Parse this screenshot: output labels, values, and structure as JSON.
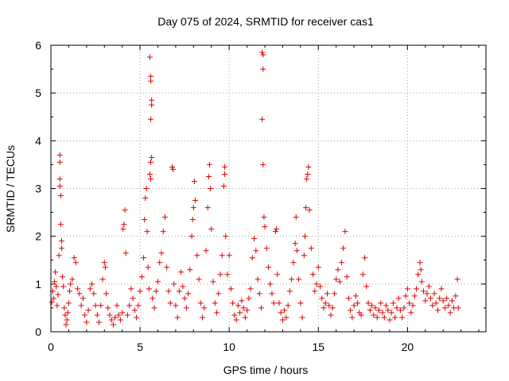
{
  "chart_data": {
    "type": "scatter",
    "title": "Day 075 of 2024, SRMTID for receiver cas1",
    "xlabel": "GPS time / hours",
    "ylabel": "SRMTID / TECUs",
    "xlim": [
      0,
      24.4
    ],
    "ylim": [
      0,
      6
    ],
    "xticks": [
      0,
      5,
      10,
      15,
      20
    ],
    "yticks": [
      0,
      1,
      2,
      3,
      4,
      5,
      6
    ],
    "xtick_labels": [
      "0",
      "5",
      "10",
      "15",
      "20"
    ],
    "ytick_labels": [
      "0",
      "1",
      "2",
      "3",
      "4",
      "5",
      "6"
    ],
    "grid": true,
    "marker": "+",
    "series": [
      {
        "name": "SRMTID",
        "color": "#e00000",
        "points": [
          [
            0.05,
            0.62
          ],
          [
            0.1,
            0.85
          ],
          [
            0.15,
            0.7
          ],
          [
            0.2,
            1.05
          ],
          [
            0.25,
            1.25
          ],
          [
            0.3,
            0.95
          ],
          [
            0.35,
            0.55
          ],
          [
            0.4,
            0.78
          ],
          [
            0.45,
            1.6
          ],
          [
            0.5,
            3.05
          ],
          [
            0.5,
            3.2
          ],
          [
            0.5,
            3.55
          ],
          [
            0.5,
            3.7
          ],
          [
            0.55,
            2.85
          ],
          [
            0.55,
            2.25
          ],
          [
            0.6,
            1.75
          ],
          [
            0.6,
            1.9
          ],
          [
            0.65,
            1.15
          ],
          [
            0.7,
            0.95
          ],
          [
            0.75,
            0.5
          ],
          [
            0.8,
            0.35
          ],
          [
            0.85,
            0.15
          ],
          [
            0.9,
            0.25
          ],
          [
            0.95,
            0.4
          ],
          [
            1.0,
            0.6
          ],
          [
            1.05,
            0.85
          ],
          [
            1.1,
            1.0
          ],
          [
            1.2,
            1.1
          ],
          [
            1.3,
            1.55
          ],
          [
            1.4,
            1.45
          ],
          [
            1.5,
            0.9
          ],
          [
            1.6,
            0.8
          ],
          [
            1.7,
            0.55
          ],
          [
            1.8,
            0.7
          ],
          [
            1.9,
            0.35
          ],
          [
            2.0,
            0.2
          ],
          [
            2.1,
            0.45
          ],
          [
            2.2,
            0.9
          ],
          [
            2.3,
            1.0
          ],
          [
            2.4,
            0.8
          ],
          [
            2.5,
            0.55
          ],
          [
            2.6,
            0.35
          ],
          [
            2.7,
            0.2
          ],
          [
            2.8,
            0.55
          ],
          [
            2.9,
            1.1
          ],
          [
            3.0,
            1.45
          ],
          [
            3.05,
            1.35
          ],
          [
            3.1,
            0.8
          ],
          [
            3.2,
            0.5
          ],
          [
            3.3,
            0.35
          ],
          [
            3.4,
            0.25
          ],
          [
            3.5,
            0.15
          ],
          [
            3.6,
            0.3
          ],
          [
            3.7,
            0.55
          ],
          [
            3.8,
            0.35
          ],
          [
            3.9,
            0.25
          ],
          [
            4.0,
            0.4
          ],
          [
            4.05,
            2.15
          ],
          [
            4.1,
            2.25
          ],
          [
            4.15,
            2.55
          ],
          [
            4.2,
            1.65
          ],
          [
            4.3,
            0.35
          ],
          [
            4.4,
            0.55
          ],
          [
            4.5,
            0.9
          ],
          [
            4.6,
            0.7
          ],
          [
            4.7,
            0.45
          ],
          [
            4.8,
            0.3
          ],
          [
            4.9,
            0.55
          ],
          [
            5.0,
            0.85
          ],
          [
            5.1,
            1.15
          ],
          [
            5.2,
            1.55
          ],
          [
            5.25,
            2.35
          ],
          [
            5.3,
            2.8
          ],
          [
            5.35,
            3.0
          ],
          [
            5.4,
            2.1
          ],
          [
            5.45,
            1.35
          ],
          [
            5.5,
            0.9
          ],
          [
            5.55,
            5.75
          ],
          [
            5.6,
            5.35
          ],
          [
            5.6,
            5.25
          ],
          [
            5.65,
            4.85
          ],
          [
            5.65,
            4.75
          ],
          [
            5.6,
            4.45
          ],
          [
            5.6,
            3.55
          ],
          [
            5.55,
            3.3
          ],
          [
            5.6,
            3.2
          ],
          [
            5.65,
            3.65
          ],
          [
            5.7,
            0.7
          ],
          [
            5.8,
            0.5
          ],
          [
            5.9,
            0.85
          ],
          [
            6.0,
            1.05
          ],
          [
            6.1,
            1.45
          ],
          [
            6.2,
            1.65
          ],
          [
            6.3,
            2.1
          ],
          [
            6.4,
            2.4
          ],
          [
            6.5,
            1.35
          ],
          [
            6.6,
            0.85
          ],
          [
            6.7,
            0.6
          ],
          [
            6.8,
            3.45
          ],
          [
            6.85,
            3.4
          ],
          [
            6.9,
            1.0
          ],
          [
            7.0,
            0.55
          ],
          [
            7.1,
            0.3
          ],
          [
            7.2,
            0.85
          ],
          [
            7.3,
            1.25
          ],
          [
            7.4,
            0.95
          ],
          [
            7.5,
            0.7
          ],
          [
            7.6,
            0.5
          ],
          [
            7.7,
            0.8
          ],
          [
            7.8,
            1.3
          ],
          [
            7.9,
            2.0
          ],
          [
            7.95,
            2.35
          ],
          [
            8.0,
            2.6
          ],
          [
            8.05,
            3.15
          ],
          [
            8.1,
            2.75
          ],
          [
            8.2,
            1.6
          ],
          [
            8.3,
            1.1
          ],
          [
            8.4,
            0.6
          ],
          [
            8.5,
            0.3
          ],
          [
            8.6,
            0.5
          ],
          [
            8.7,
            1.7
          ],
          [
            8.8,
            2.6
          ],
          [
            8.85,
            3.25
          ],
          [
            8.9,
            3.5
          ],
          [
            8.95,
            3.0
          ],
          [
            9.0,
            2.15
          ],
          [
            9.1,
            1.05
          ],
          [
            9.2,
            0.6
          ],
          [
            9.3,
            0.4
          ],
          [
            9.4,
            0.8
          ],
          [
            9.5,
            1.2
          ],
          [
            9.6,
            1.6
          ],
          [
            9.7,
            3.05
          ],
          [
            9.75,
            3.3
          ],
          [
            9.75,
            3.45
          ],
          [
            9.8,
            2.0
          ],
          [
            9.9,
            1.2
          ],
          [
            10.0,
            1.6
          ],
          [
            10.1,
            0.9
          ],
          [
            10.2,
            0.6
          ],
          [
            10.3,
            0.35
          ],
          [
            10.4,
            0.25
          ],
          [
            10.5,
            0.55
          ],
          [
            10.6,
            0.4
          ],
          [
            10.7,
            0.65
          ],
          [
            10.8,
            0.5
          ],
          [
            10.9,
            0.3
          ],
          [
            11.0,
            0.45
          ],
          [
            11.1,
            0.7
          ],
          [
            11.2,
            0.9
          ],
          [
            11.3,
            1.55
          ],
          [
            11.4,
            1.95
          ],
          [
            11.5,
            1.7
          ],
          [
            11.6,
            1.1
          ],
          [
            11.7,
            0.8
          ],
          [
            11.8,
            0.5
          ],
          [
            11.85,
            5.85
          ],
          [
            11.9,
            5.8
          ],
          [
            11.9,
            5.5
          ],
          [
            11.85,
            4.45
          ],
          [
            11.9,
            3.5
          ],
          [
            11.95,
            2.4
          ],
          [
            12.0,
            2.2
          ],
          [
            12.1,
            1.75
          ],
          [
            12.2,
            1.35
          ],
          [
            12.3,
            1.0
          ],
          [
            12.4,
            0.8
          ],
          [
            12.5,
            0.6
          ],
          [
            12.6,
            2.1
          ],
          [
            12.65,
            2.15
          ],
          [
            12.7,
            1.2
          ],
          [
            12.8,
            0.6
          ],
          [
            12.9,
            0.4
          ],
          [
            13.0,
            0.25
          ],
          [
            13.1,
            0.45
          ],
          [
            13.2,
            0.3
          ],
          [
            13.3,
            0.55
          ],
          [
            13.4,
            0.85
          ],
          [
            13.5,
            1.1
          ],
          [
            13.6,
            1.45
          ],
          [
            13.7,
            1.85
          ],
          [
            13.75,
            2.4
          ],
          [
            13.8,
            1.7
          ],
          [
            13.9,
            1.1
          ],
          [
            14.0,
            0.6
          ],
          [
            14.1,
            0.3
          ],
          [
            14.2,
            1.6
          ],
          [
            14.25,
            2.0
          ],
          [
            14.3,
            2.6
          ],
          [
            14.35,
            3.2
          ],
          [
            14.4,
            3.3
          ],
          [
            14.45,
            3.45
          ],
          [
            14.5,
            2.55
          ],
          [
            14.6,
            1.75
          ],
          [
            14.7,
            1.2
          ],
          [
            14.8,
            0.85
          ],
          [
            14.9,
            1.0
          ],
          [
            15.0,
            1.35
          ],
          [
            15.1,
            0.95
          ],
          [
            15.2,
            0.7
          ],
          [
            15.3,
            0.5
          ],
          [
            15.4,
            0.6
          ],
          [
            15.5,
            0.8
          ],
          [
            15.6,
            0.55
          ],
          [
            15.7,
            0.35
          ],
          [
            15.8,
            0.5
          ],
          [
            15.9,
            0.8
          ],
          [
            16.0,
            1.1
          ],
          [
            16.1,
            1.3
          ],
          [
            16.2,
            1.05
          ],
          [
            16.3,
            1.45
          ],
          [
            16.4,
            1.75
          ],
          [
            16.5,
            2.1
          ],
          [
            16.6,
            1.15
          ],
          [
            16.7,
            0.7
          ],
          [
            16.8,
            0.45
          ],
          [
            16.9,
            0.3
          ],
          [
            17.0,
            0.55
          ],
          [
            17.1,
            0.75
          ],
          [
            17.2,
            0.6
          ],
          [
            17.3,
            0.4
          ],
          [
            17.4,
            0.35
          ],
          [
            17.5,
            1.2
          ],
          [
            17.6,
            1.55
          ],
          [
            17.7,
            0.95
          ],
          [
            17.8,
            0.6
          ],
          [
            17.9,
            0.45
          ],
          [
            18.0,
            0.55
          ],
          [
            18.1,
            0.35
          ],
          [
            18.2,
            0.5
          ],
          [
            18.3,
            0.3
          ],
          [
            18.4,
            0.45
          ],
          [
            18.5,
            0.6
          ],
          [
            18.6,
            0.4
          ],
          [
            18.7,
            0.3
          ],
          [
            18.8,
            0.55
          ],
          [
            18.9,
            0.45
          ],
          [
            19.0,
            0.25
          ],
          [
            19.1,
            0.4
          ],
          [
            19.2,
            0.6
          ],
          [
            19.3,
            0.3
          ],
          [
            19.4,
            0.5
          ],
          [
            19.5,
            0.7
          ],
          [
            19.6,
            0.45
          ],
          [
            19.7,
            0.3
          ],
          [
            19.8,
            0.5
          ],
          [
            19.9,
            0.75
          ],
          [
            20.0,
            0.9
          ],
          [
            20.1,
            0.6
          ],
          [
            20.2,
            0.4
          ],
          [
            20.3,
            0.55
          ],
          [
            20.4,
            0.75
          ],
          [
            20.5,
            0.9
          ],
          [
            20.6,
            1.2
          ],
          [
            20.7,
            1.45
          ],
          [
            20.75,
            1.3
          ],
          [
            20.8,
            1.05
          ],
          [
            20.9,
            0.85
          ],
          [
            21.0,
            0.65
          ],
          [
            21.1,
            0.8
          ],
          [
            21.2,
            0.95
          ],
          [
            21.3,
            0.7
          ],
          [
            21.4,
            0.55
          ],
          [
            21.5,
            0.8
          ],
          [
            21.6,
            0.6
          ],
          [
            21.7,
            0.45
          ],
          [
            21.8,
            0.7
          ],
          [
            21.9,
            0.9
          ],
          [
            22.0,
            0.65
          ],
          [
            22.1,
            0.5
          ],
          [
            22.2,
            0.7
          ],
          [
            22.3,
            0.55
          ],
          [
            22.4,
            0.4
          ],
          [
            22.5,
            0.65
          ],
          [
            22.6,
            0.5
          ],
          [
            22.7,
            0.75
          ],
          [
            22.8,
            1.1
          ],
          [
            22.85,
            0.5
          ]
        ]
      }
    ]
  }
}
